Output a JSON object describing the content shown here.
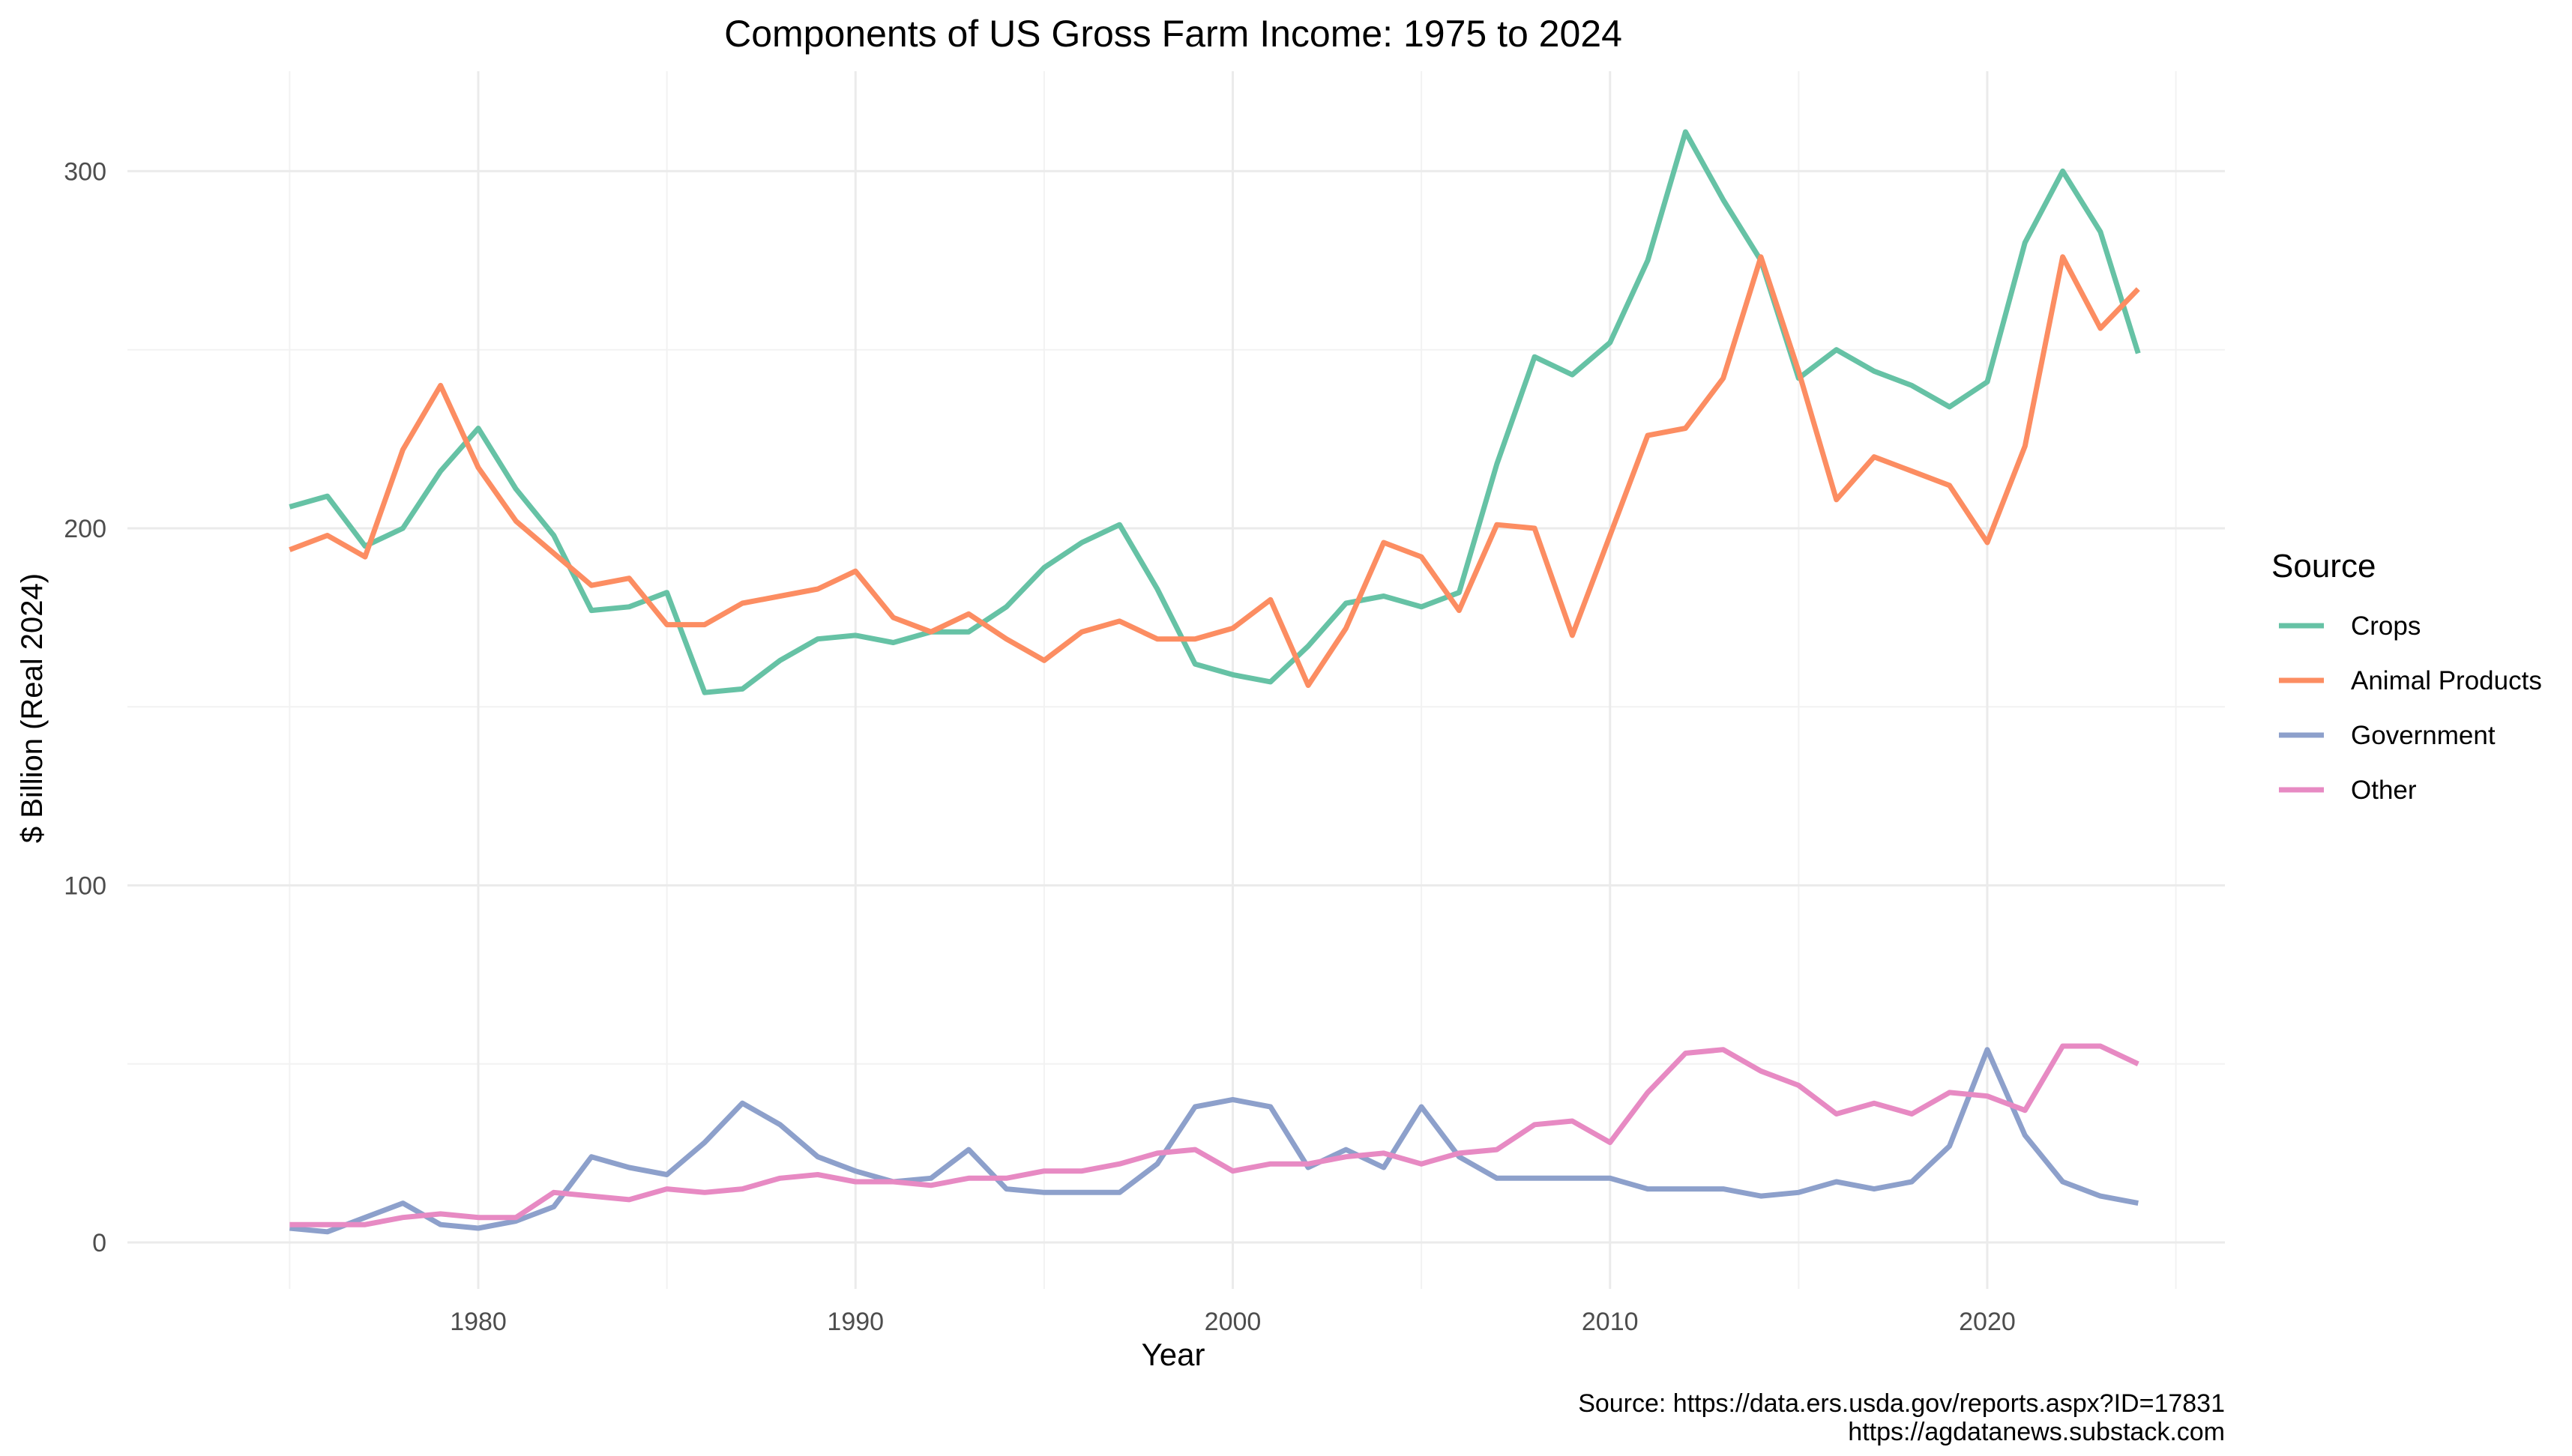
{
  "chart_data": {
    "type": "line",
    "title": "Components of US Gross Farm Income: 1975 to 2024",
    "xlabel": "Year",
    "ylabel": "$ Billion (Real 2024)",
    "xlim": [
      1970.7,
      2026.3
    ],
    "ylim": [
      -13,
      328
    ],
    "x_ticks": [
      1980,
      1990,
      2000,
      2010,
      2020
    ],
    "y_ticks": [
      0,
      100,
      200,
      300
    ],
    "grid": true,
    "legend": {
      "title": "Source",
      "placement": "right"
    },
    "caption": [
      "Source: https://data.ers.usda.gov/reports.aspx?ID=17831",
      "https://agdatanews.substack.com"
    ],
    "x": [
      1975,
      1976,
      1977,
      1978,
      1979,
      1980,
      1981,
      1982,
      1983,
      1984,
      1985,
      1986,
      1987,
      1988,
      1989,
      1990,
      1991,
      1992,
      1993,
      1994,
      1995,
      1996,
      1997,
      1998,
      1999,
      2000,
      2001,
      2002,
      2003,
      2004,
      2005,
      2006,
      2007,
      2008,
      2009,
      2010,
      2011,
      2012,
      2013,
      2014,
      2015,
      2016,
      2017,
      2018,
      2019,
      2020,
      2021,
      2022,
      2023,
      2024
    ],
    "series": [
      {
        "name": "Crops",
        "color": "#66C2A5",
        "values": [
          206,
          209,
          195,
          200,
          216,
          228,
          211,
          198,
          177,
          178,
          182,
          154,
          155,
          163,
          169,
          170,
          168,
          171,
          171,
          178,
          189,
          196,
          201,
          183,
          162,
          159,
          157,
          167,
          179,
          181,
          178,
          182,
          218,
          248,
          243,
          252,
          275,
          311,
          292,
          275,
          242,
          250,
          244,
          240,
          234,
          241,
          280,
          300,
          283,
          249
        ]
      },
      {
        "name": "Animal Products",
        "color": "#FC8D62",
        "values": [
          194,
          198,
          192,
          222,
          240,
          217,
          202,
          193,
          184,
          186,
          173,
          173,
          179,
          181,
          183,
          188,
          175,
          171,
          176,
          169,
          163,
          171,
          174,
          169,
          169,
          172,
          180,
          156,
          172,
          196,
          192,
          177,
          201,
          200,
          170,
          198,
          226,
          228,
          242,
          276,
          244,
          208,
          220,
          216,
          212,
          196,
          223,
          276,
          256,
          267
        ]
      },
      {
        "name": "Government",
        "color": "#8DA0CB",
        "values": [
          4,
          3,
          7,
          11,
          5,
          4,
          6,
          10,
          24,
          21,
          19,
          28,
          39,
          33,
          24,
          20,
          17,
          18,
          26,
          15,
          14,
          14,
          14,
          22,
          38,
          40,
          38,
          21,
          26,
          21,
          38,
          24,
          18,
          18,
          18,
          18,
          15,
          15,
          15,
          13,
          14,
          17,
          15,
          17,
          27,
          54,
          30,
          17,
          13,
          11
        ]
      },
      {
        "name": "Other",
        "color": "#E78AC3",
        "values": [
          5,
          5,
          5,
          7,
          8,
          7,
          7,
          14,
          13,
          12,
          15,
          14,
          15,
          18,
          19,
          17,
          17,
          16,
          18,
          18,
          20,
          20,
          22,
          25,
          26,
          20,
          22,
          22,
          24,
          25,
          22,
          25,
          26,
          33,
          34,
          28,
          42,
          53,
          54,
          48,
          44,
          36,
          39,
          36,
          42,
          41,
          37,
          55,
          55,
          50
        ]
      }
    ]
  }
}
